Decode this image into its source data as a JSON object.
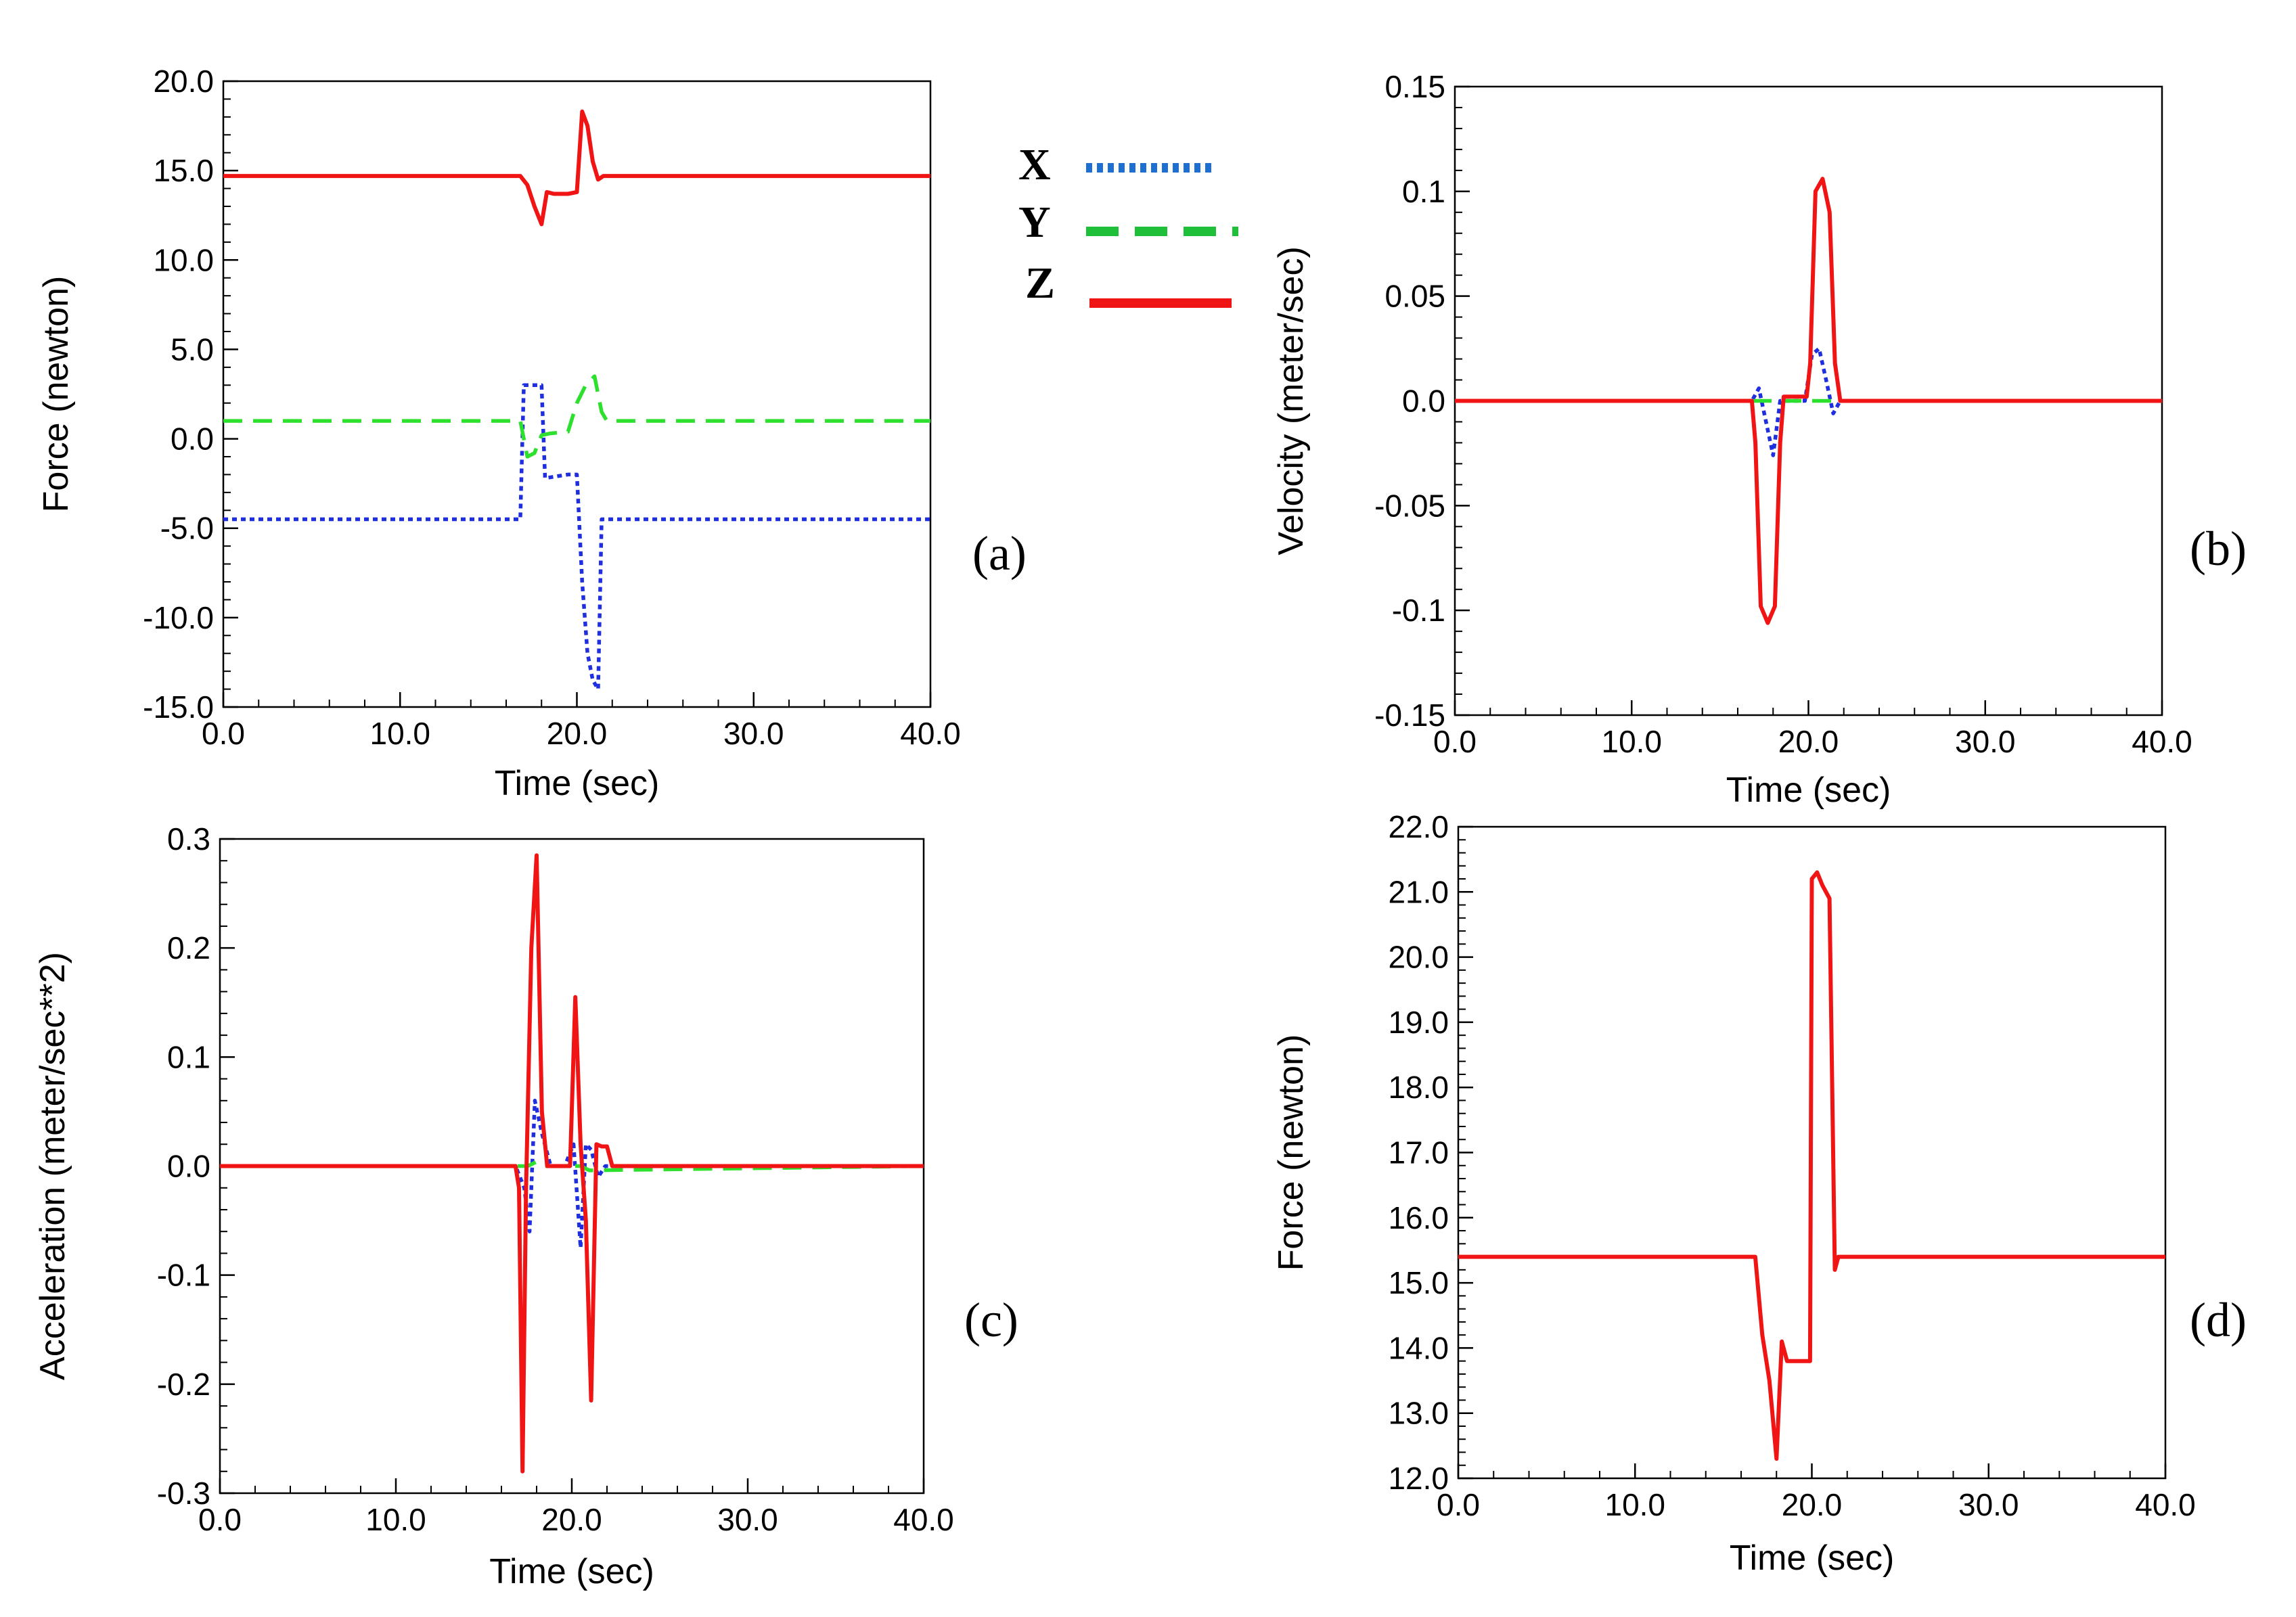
{
  "legend": {
    "items": [
      {
        "label": "X",
        "color": "#1f4fe0",
        "style": "dotted"
      },
      {
        "label": "Y",
        "color": "#1fbf3a",
        "style": "dashed"
      },
      {
        "label": "Z",
        "color": "#f01414",
        "style": "solid"
      }
    ]
  },
  "chart_data": [
    {
      "id": "a",
      "panel_label": "(a)",
      "type": "line",
      "xlabel": "Time (sec)",
      "ylabel": "Force (newton)",
      "xlim": [
        0,
        40
      ],
      "ylim": [
        -15,
        20
      ],
      "xticks": [
        0,
        10,
        20,
        30,
        40
      ],
      "xtick_labels": [
        "0.0",
        "10.0",
        "20.0",
        "30.0",
        "40.0"
      ],
      "yticks": [
        -15,
        -10,
        -5,
        0,
        5,
        10,
        15,
        20
      ],
      "ytick_labels": [
        "-15.0",
        "-10.0",
        "-5.0",
        "0.0",
        "5.0",
        "10.0",
        "15.0",
        "20.0"
      ],
      "series": [
        {
          "name": "X",
          "color": "#1f2fe0",
          "style": "dotted",
          "x": [
            0,
            16.8,
            17.0,
            17.2,
            18.0,
            18.2,
            19.5,
            20.0,
            20.3,
            20.6,
            20.9,
            21.2,
            21.4,
            21.6,
            40
          ],
          "y": [
            -4.5,
            -4.5,
            3.0,
            3.0,
            3.0,
            -2.2,
            -2.0,
            -2.0,
            -8.0,
            -12.0,
            -13.5,
            -14.0,
            -4.5,
            -4.5,
            -4.5
          ]
        },
        {
          "name": "Y",
          "color": "#2ee02e",
          "style": "dashed",
          "x": [
            0,
            16.8,
            17.2,
            17.6,
            18.0,
            18.5,
            19.5,
            20.0,
            20.5,
            21.0,
            21.4,
            21.7,
            40
          ],
          "y": [
            1.0,
            1.0,
            -1.0,
            -0.8,
            0.2,
            0.3,
            0.4,
            2.0,
            3.0,
            3.5,
            1.5,
            1.0,
            1.0
          ]
        },
        {
          "name": "Z",
          "color": "#f01414",
          "style": "solid",
          "x": [
            0,
            16.8,
            17.2,
            17.6,
            18.0,
            18.3,
            18.7,
            19.5,
            20.0,
            20.3,
            20.6,
            20.9,
            21.2,
            21.5,
            21.8,
            40
          ],
          "y": [
            14.7,
            14.7,
            14.2,
            13.0,
            12.0,
            13.8,
            13.7,
            13.7,
            13.8,
            18.3,
            17.5,
            15.5,
            14.5,
            14.7,
            14.7,
            14.7
          ]
        }
      ]
    },
    {
      "id": "b",
      "panel_label": "(b)",
      "type": "line",
      "xlabel": "Time (sec)",
      "ylabel": "Velocity (meter/sec)",
      "xlim": [
        0,
        40
      ],
      "ylim": [
        -0.15,
        0.15
      ],
      "xticks": [
        0,
        10,
        20,
        30,
        40
      ],
      "xtick_labels": [
        "0.0",
        "10.0",
        "20.0",
        "30.0",
        "40.0"
      ],
      "yticks": [
        -0.15,
        -0.1,
        -0.05,
        0,
        0.05,
        0.1,
        0.15
      ],
      "ytick_labels": [
        "-0.15",
        "-0.1",
        "-0.05",
        "0.0",
        "0.05",
        "0.1",
        "0.15"
      ],
      "series": [
        {
          "name": "X",
          "color": "#1f2fe0",
          "style": "dotted",
          "x": [
            0,
            16.8,
            17.2,
            17.6,
            18.0,
            18.4,
            19.8,
            20.2,
            20.6,
            21.0,
            21.4,
            21.8,
            40
          ],
          "y": [
            0,
            0,
            0.006,
            -0.01,
            -0.026,
            0,
            0,
            0.022,
            0.025,
            0.01,
            -0.006,
            0,
            0
          ]
        },
        {
          "name": "Y",
          "color": "#2ee02e",
          "style": "dashed",
          "x": [
            0,
            40
          ],
          "y": [
            0,
            0
          ]
        },
        {
          "name": "Z",
          "color": "#f01414",
          "style": "solid",
          "x": [
            0,
            16.8,
            17.0,
            17.3,
            17.7,
            18.1,
            18.4,
            18.6,
            19.9,
            20.1,
            20.4,
            20.8,
            21.2,
            21.5,
            21.8,
            40
          ],
          "y": [
            0,
            0,
            -0.02,
            -0.098,
            -0.106,
            -0.098,
            -0.02,
            0.002,
            0.002,
            0.018,
            0.1,
            0.106,
            0.09,
            0.018,
            0,
            0
          ]
        }
      ]
    },
    {
      "id": "c",
      "panel_label": "(c)",
      "type": "line",
      "xlabel": "Time (sec)",
      "ylabel": "Acceleration (meter/sec**2)",
      "xlim": [
        0,
        40
      ],
      "ylim": [
        -0.3,
        0.3
      ],
      "xticks": [
        0,
        10,
        20,
        30,
        40
      ],
      "xtick_labels": [
        "0.0",
        "10.0",
        "20.0",
        "30.0",
        "40.0"
      ],
      "yticks": [
        -0.3,
        -0.2,
        -0.1,
        0,
        0.1,
        0.2,
        0.3
      ],
      "ytick_labels": [
        "-0.3",
        "-0.2",
        "-0.1",
        "0.0",
        "0.1",
        "0.2",
        "0.3"
      ],
      "series": [
        {
          "name": "X",
          "color": "#1f2fe0",
          "style": "dotted",
          "x": [
            0,
            16.8,
            17.3,
            17.6,
            17.9,
            18.3,
            18.8,
            19.6,
            20.1,
            20.5,
            20.8,
            21.1,
            21.5,
            21.9,
            40
          ],
          "y": [
            0,
            0,
            -0.02,
            -0.06,
            0.06,
            0.03,
            0,
            0,
            0.02,
            -0.075,
            0.02,
            0.015,
            -0.01,
            0,
            0
          ]
        },
        {
          "name": "Y",
          "color": "#2ee02e",
          "style": "dashed",
          "x": [
            0,
            17.5,
            18.0,
            18.5,
            20.5,
            21.0,
            40
          ],
          "y": [
            0,
            0,
            0.004,
            0,
            0,
            -0.004,
            0
          ]
        },
        {
          "name": "Z",
          "color": "#f01414",
          "style": "solid",
          "x": [
            0,
            16.8,
            17.0,
            17.2,
            17.4,
            17.7,
            18.0,
            18.3,
            18.6,
            19.9,
            20.2,
            20.5,
            20.8,
            21.1,
            21.4,
            21.7,
            22.0,
            22.3,
            40
          ],
          "y": [
            0,
            0,
            -0.02,
            -0.28,
            -0.02,
            0.2,
            0.285,
            0.05,
            0,
            0,
            0.155,
            0.02,
            -0.05,
            -0.215,
            0.02,
            0.018,
            0.018,
            0,
            0
          ]
        }
      ]
    },
    {
      "id": "d",
      "panel_label": "(d)",
      "type": "line",
      "xlabel": "Time (sec)",
      "ylabel": "Force (newton)",
      "xlim": [
        0,
        40
      ],
      "ylim": [
        12,
        22
      ],
      "xticks": [
        0,
        10,
        20,
        30,
        40
      ],
      "xtick_labels": [
        "0.0",
        "10.0",
        "20.0",
        "30.0",
        "40.0"
      ],
      "yticks": [
        12,
        13,
        14,
        15,
        16,
        17,
        18,
        19,
        20,
        21,
        22
      ],
      "ytick_labels": [
        "12.0",
        "13.0",
        "14.0",
        "15.0",
        "16.0",
        "17.0",
        "18.0",
        "19.0",
        "20.0",
        "21.0",
        "22.0"
      ],
      "series": [
        {
          "name": "Z",
          "color": "#f01414",
          "style": "solid",
          "x": [
            0,
            16.8,
            17.2,
            17.6,
            18.0,
            18.3,
            18.6,
            19.2,
            19.9,
            20.0,
            20.3,
            20.6,
            21.0,
            21.3,
            21.5,
            21.8,
            40
          ],
          "y": [
            15.4,
            15.4,
            14.2,
            13.5,
            12.3,
            14.1,
            13.8,
            13.8,
            13.8,
            21.2,
            21.3,
            21.1,
            20.9,
            15.2,
            15.4,
            15.4,
            15.4
          ]
        }
      ]
    }
  ]
}
